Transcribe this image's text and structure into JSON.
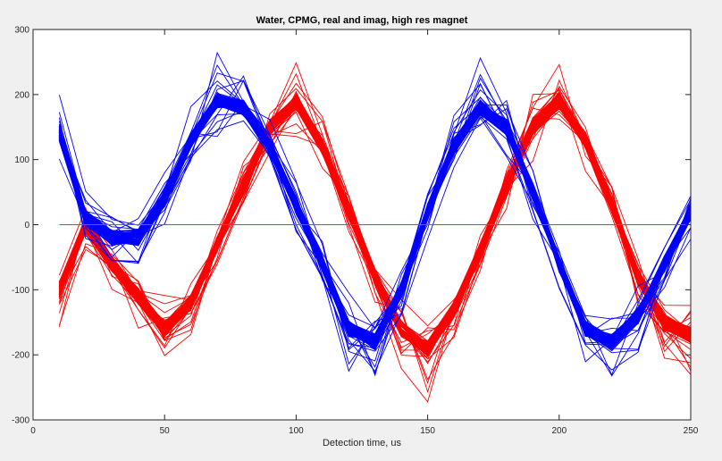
{
  "chart_data": {
    "type": "line",
    "title": "Water, CPMG, real and imag, high res magnet",
    "xlabel": "Detection time, us",
    "ylabel": "",
    "xlim": [
      0,
      250
    ],
    "ylim": [
      -300,
      300
    ],
    "xticks": [
      0,
      50,
      100,
      150,
      200,
      250
    ],
    "yticks": [
      -300,
      -200,
      -100,
      0,
      100,
      200,
      300
    ],
    "grid": false,
    "legend": "none",
    "x": [
      10,
      20,
      30,
      40,
      50,
      60,
      70,
      80,
      90,
      100,
      110,
      120,
      130,
      140,
      150,
      160,
      170,
      180,
      190,
      200,
      210,
      220,
      230,
      240,
      250
    ],
    "series": [
      {
        "color": "#ff0000",
        "role": "real",
        "values": [
          -100,
          0,
          -60,
          -110,
          -160,
          -120,
          -30,
          60,
          150,
          190,
          120,
          20,
          -80,
          -160,
          -190,
          -130,
          -40,
          60,
          150,
          190,
          130,
          30,
          -80,
          -150,
          -170
        ]
      },
      {
        "color": "#0000ff",
        "role": "imag",
        "values": [
          140,
          10,
          -20,
          -20,
          40,
          130,
          190,
          180,
          120,
          30,
          -60,
          -160,
          -180,
          -100,
          20,
          120,
          180,
          150,
          50,
          -60,
          -160,
          -180,
          -140,
          -60,
          20
        ]
      },
      {
        "color": "#00b000",
        "role": "zero",
        "values": [
          0,
          0,
          0,
          0,
          0,
          0,
          0,
          0,
          0,
          0,
          0,
          0,
          0,
          0,
          0,
          0,
          0,
          0,
          0,
          0,
          0,
          0,
          0,
          0,
          0
        ]
      }
    ],
    "spread": {
      "band_traces": 70,
      "band_amplitude": 12,
      "outlier_traces": 14,
      "outlier_amplitude": 55
    }
  }
}
